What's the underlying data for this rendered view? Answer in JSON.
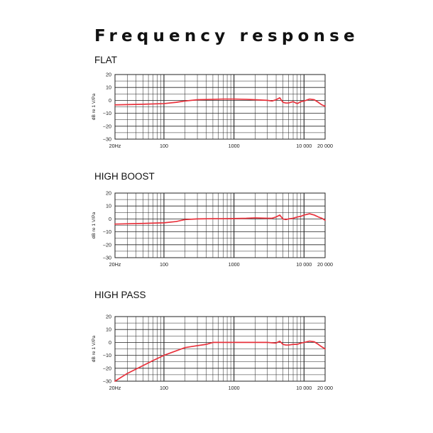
{
  "title": "Frequency response",
  "colors": {
    "curve": "#e8323c",
    "grid": "#222222",
    "background": "#ffffff"
  },
  "chart_data": [
    {
      "type": "line",
      "title": "FLAT",
      "xscale": "log",
      "xlim": [
        20,
        20000
      ],
      "ylim": [
        -30,
        20
      ],
      "yticks": [
        20,
        10,
        0,
        -10,
        -20,
        -30
      ],
      "ytick_labels": [
        "20",
        "10",
        "0",
        "−10",
        "−20",
        "−30"
      ],
      "xticks": [
        20,
        100,
        1000,
        10000,
        20000
      ],
      "xtick_labels": [
        "20Hz",
        "100",
        "1000",
        "10 000",
        "20 000"
      ],
      "ylabel": "dB re 1 V/Pa",
      "grid": true,
      "series": [
        {
          "x": [
            20,
            50,
            100,
            150,
            200,
            300,
            500,
            700,
            1000,
            1500,
            2000,
            3000,
            3500,
            4000,
            4500,
            5000,
            5500,
            6000,
            7000,
            8000,
            9000,
            10000,
            12000,
            14000,
            16000,
            18000,
            20000
          ],
          "y": [
            -3.5,
            -3,
            -2.5,
            -1.5,
            -0.5,
            0.5,
            0.8,
            1,
            1,
            0.8,
            0.5,
            0,
            -0.5,
            0.5,
            2,
            -1.5,
            -2,
            -2,
            -1,
            -2.5,
            -1,
            -0.5,
            1,
            0.5,
            -1.5,
            -3.5,
            -4.5
          ]
        }
      ]
    },
    {
      "type": "line",
      "title": "HIGH BOOST",
      "xscale": "log",
      "xlim": [
        20,
        20000
      ],
      "ylim": [
        -30,
        20
      ],
      "yticks": [
        20,
        10,
        0,
        -10,
        -20,
        -30
      ],
      "ytick_labels": [
        "20",
        "10",
        "0",
        "−10",
        "−20",
        "−30"
      ],
      "xticks": [
        20,
        100,
        1000,
        10000,
        20000
      ],
      "xtick_labels": [
        "20Hz",
        "100",
        "1000",
        "10 000",
        "20 000"
      ],
      "ylabel": "dB re 1 V/Pa",
      "grid": true,
      "series": [
        {
          "x": [
            20,
            50,
            100,
            150,
            200,
            300,
            500,
            700,
            1000,
            1500,
            2000,
            3000,
            3500,
            4000,
            4500,
            5000,
            5500,
            6000,
            7000,
            8000,
            9000,
            10000,
            12000,
            14000,
            16000,
            18000,
            20000
          ],
          "y": [
            -4,
            -3.5,
            -3,
            -2,
            -0.5,
            0,
            0.2,
            0.2,
            0.3,
            0.5,
            0.8,
            0.5,
            0.5,
            1.5,
            3,
            0,
            -0.5,
            0,
            0.5,
            1.5,
            2,
            3,
            4,
            3,
            1.5,
            0.5,
            -1
          ]
        }
      ]
    },
    {
      "type": "line",
      "title": "HIGH PASS",
      "xscale": "log",
      "xlim": [
        20,
        20000
      ],
      "ylim": [
        -30,
        20
      ],
      "yticks": [
        20,
        10,
        0,
        -10,
        -20,
        -30
      ],
      "ytick_labels": [
        "20",
        "10",
        "0",
        "−10",
        "−20",
        "−30"
      ],
      "xticks": [
        20,
        100,
        1000,
        10000,
        20000
      ],
      "xtick_labels": [
        "20Hz",
        "100",
        "1000",
        "10 000",
        "20 000"
      ],
      "ylabel": "dB re 1 V/Pa",
      "grid": true,
      "series": [
        {
          "x": [
            20,
            30,
            50,
            70,
            100,
            150,
            200,
            300,
            400,
            500,
            700,
            1000,
            1500,
            2000,
            3000,
            4000,
            4500,
            5000,
            5500,
            6000,
            7000,
            8000,
            9000,
            10000,
            12000,
            14000,
            16000,
            18000,
            20000
          ],
          "y": [
            -30,
            -24,
            -18,
            -14,
            -10,
            -6.5,
            -4,
            -2.5,
            -1.5,
            0,
            0,
            0,
            0,
            0,
            0,
            -0.5,
            1,
            -1.5,
            -2,
            -2,
            -1.5,
            -1.5,
            -0.5,
            0,
            1,
            0.5,
            -1.5,
            -3.5,
            -5
          ]
        }
      ]
    }
  ]
}
